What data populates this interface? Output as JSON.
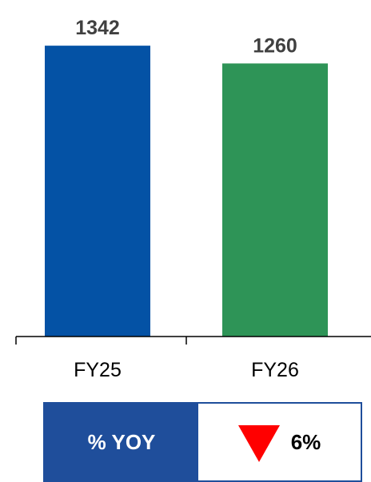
{
  "chart_data": {
    "type": "bar",
    "categories": [
      "FY25",
      "FY26"
    ],
    "values": [
      1342,
      1260
    ],
    "data_labels": [
      "1342",
      "1260"
    ],
    "bar_colors": [
      "#0452a5",
      "#2e9457"
    ],
    "title": "",
    "xlabel": "",
    "ylabel": "",
    "ylim": [
      0,
      1420
    ],
    "grid": false,
    "legend": "none"
  },
  "yoy": {
    "label": "% YOY",
    "value": "6%",
    "direction": "down",
    "icon": "down-triangle-icon",
    "label_bg_color": "#1f4e9b",
    "icon_color": "#ff0000"
  }
}
